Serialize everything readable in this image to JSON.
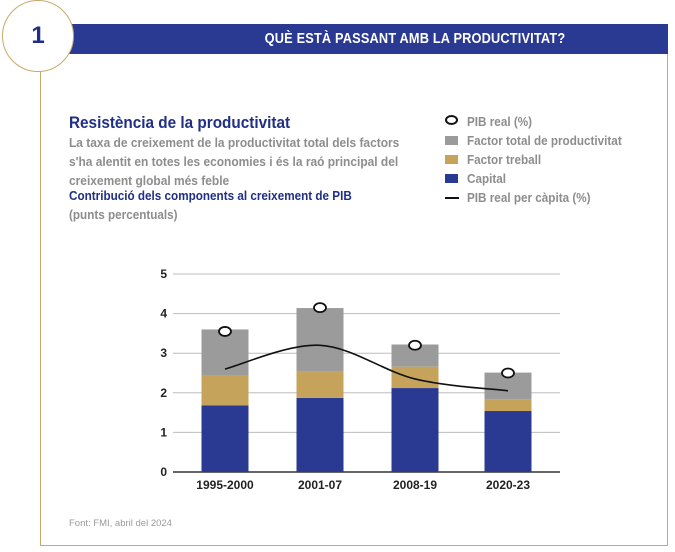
{
  "header": {
    "number": "1",
    "title": "QUÈ ESTÀ PASSANT AMB LA PRODUCTIVITAT?"
  },
  "text": {
    "title": "Resistència de la productivitat",
    "description_lines": [
      "La taxa de creixement de la productivitat total dels factors",
      "s'ha alentit en totes les economies i és la raó principal del",
      "creixement global més feble"
    ],
    "subtitle": "Contribució dels components al creixement de PIB",
    "units": "(punts percentuals)",
    "source": "Font: FMI, abril del 2024"
  },
  "legend": [
    {
      "label": "PIB real (%)",
      "kind": "circle"
    },
    {
      "label": "Factor total de productivitat",
      "kind": "bar",
      "color": "#9b9b9b"
    },
    {
      "label": "Factor treball",
      "kind": "bar",
      "color": "#c6a35a"
    },
    {
      "label": "Capital",
      "kind": "bar",
      "color": "#2a3a93"
    },
    {
      "label": "PIB real per càpita (%)",
      "kind": "line"
    }
  ],
  "colors": {
    "capital": "#2a3a93",
    "labor": "#c6a35a",
    "tfp": "#9b9b9b",
    "accent": "#c9a96b",
    "header": "#2a3a93"
  },
  "chart_data": {
    "type": "bar",
    "stacked": true,
    "categories": [
      "1995-2000",
      "2001-07",
      "2008-19",
      "2020-23"
    ],
    "series": [
      {
        "name": "Capital",
        "values": [
          1.68,
          1.87,
          2.12,
          1.54
        ]
      },
      {
        "name": "Factor treball",
        "values": [
          0.77,
          0.67,
          0.54,
          0.3
        ]
      },
      {
        "name": "Factor total de productivitat",
        "values": [
          1.15,
          1.6,
          0.56,
          0.67
        ]
      }
    ],
    "markers": {
      "name": "PIB real (%)",
      "values": [
        3.55,
        4.15,
        3.2,
        2.5
      ]
    },
    "line": {
      "name": "PIB real per càpita (%)",
      "values": [
        2.6,
        3.2,
        2.35,
        2.05
      ]
    },
    "ylim": [
      0,
      5
    ],
    "yticks": [
      0,
      1,
      2,
      3,
      4,
      5
    ],
    "grid": true
  }
}
